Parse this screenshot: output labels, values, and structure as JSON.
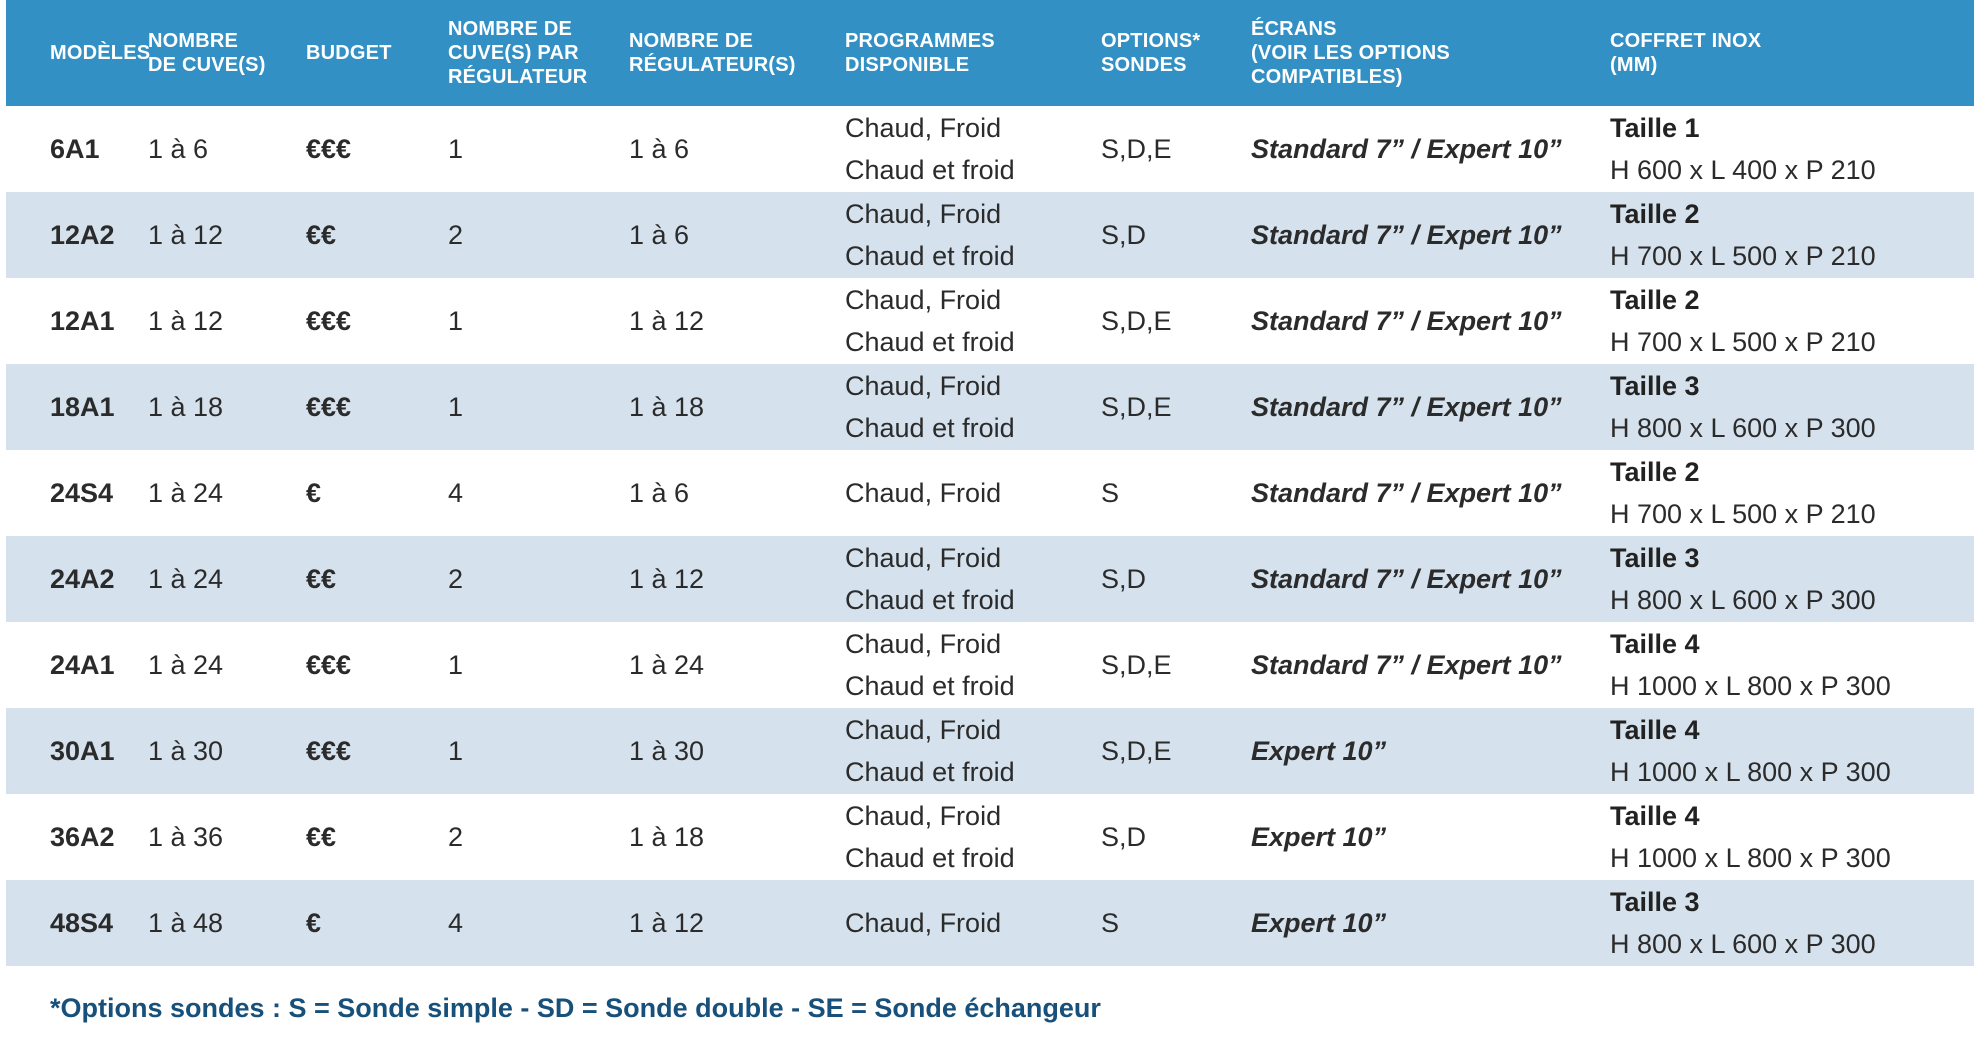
{
  "headers": {
    "model": [
      "MODÈLES"
    ],
    "tanks": [
      "NOMBRE",
      "DE CUVE(S)"
    ],
    "budget": [
      "BUDGET"
    ],
    "tanks_per_regulator": [
      "NOMBRE DE",
      "CUVE(S) PAR",
      "RÉGULATEUR"
    ],
    "regulators": [
      "NOMBRE DE",
      "RÉGULATEUR(S)"
    ],
    "programs": [
      "PROGRAMMES",
      "DISPONIBLE"
    ],
    "probes": [
      "OPTIONS*",
      "SONDES"
    ],
    "screens": [
      "ÉCRANS",
      "(VOIR LES OPTIONS",
      "COMPATIBLES)"
    ],
    "box": [
      "COFFRET INOX",
      "(mm)"
    ]
  },
  "rows": [
    {
      "model": "6A1",
      "tanks": "1 à 6",
      "budget": "€€€",
      "tanks_per_regulator": "1",
      "regulators": "1 à 6",
      "programs": [
        "Chaud, Froid",
        "Chaud et froid"
      ],
      "probes": "S,D,E",
      "screens": "Standard 7” / Expert 10”",
      "box_size": "Taille 1",
      "box_dims": "H 600 x L 400 x P 210"
    },
    {
      "model": "12A2",
      "tanks": "1 à 12",
      "budget": "€€",
      "tanks_per_regulator": "2",
      "regulators": "1 à 6",
      "programs": [
        "Chaud, Froid",
        "Chaud et froid"
      ],
      "probes": "S,D",
      "screens": "Standard 7” / Expert 10”",
      "box_size": "Taille 2",
      "box_dims": "H 700 x L 500 x P 210"
    },
    {
      "model": "12A1",
      "tanks": "1 à 12",
      "budget": "€€€",
      "tanks_per_regulator": "1",
      "regulators": "1 à 12",
      "programs": [
        "Chaud, Froid",
        "Chaud et froid"
      ],
      "probes": "S,D,E",
      "screens": "Standard 7” / Expert 10”",
      "box_size": "Taille 2",
      "box_dims": "H 700 x L 500 x P 210"
    },
    {
      "model": "18A1",
      "tanks": "1 à 18",
      "budget": "€€€",
      "tanks_per_regulator": "1",
      "regulators": "1 à 18",
      "programs": [
        "Chaud, Froid",
        "Chaud et froid"
      ],
      "probes": "S,D,E",
      "screens": "Standard 7” / Expert 10”",
      "box_size": "Taille 3",
      "box_dims": "H 800 x L 600 x P 300"
    },
    {
      "model": "24S4",
      "tanks": "1 à 24",
      "budget": "€",
      "tanks_per_regulator": "4",
      "regulators": "1 à 6",
      "programs": [
        "Chaud, Froid"
      ],
      "probes": "S",
      "screens": "Standard 7” / Expert 10”",
      "box_size": "Taille 2",
      "box_dims": "H 700 x L 500 x P 210"
    },
    {
      "model": "24A2",
      "tanks": "1 à 24",
      "budget": "€€",
      "tanks_per_regulator": "2",
      "regulators": "1 à 12",
      "programs": [
        "Chaud, Froid",
        "Chaud et froid"
      ],
      "probes": "S,D",
      "screens": "Standard 7” / Expert 10”",
      "box_size": "Taille 3",
      "box_dims": "H 800 x L 600 x P 300"
    },
    {
      "model": "24A1",
      "tanks": "1 à 24",
      "budget": "€€€",
      "tanks_per_regulator": "1",
      "regulators": "1 à 24",
      "programs": [
        "Chaud, Froid",
        "Chaud et froid"
      ],
      "probes": "S,D,E",
      "screens": "Standard 7” / Expert 10”",
      "box_size": "Taille 4",
      "box_dims": "H 1000 x L 800 x P 300"
    },
    {
      "model": "30A1",
      "tanks": "1 à 30",
      "budget": "€€€",
      "tanks_per_regulator": "1",
      "regulators": "1 à 30",
      "programs": [
        "Chaud, Froid",
        "Chaud et froid"
      ],
      "probes": "S,D,E",
      "screens": "Expert 10”",
      "box_size": "Taille 4",
      "box_dims": "H 1000 x L 800 x P 300"
    },
    {
      "model": "36A2",
      "tanks": "1 à 36",
      "budget": "€€",
      "tanks_per_regulator": "2",
      "regulators": "1 à 18",
      "programs": [
        "Chaud, Froid",
        "Chaud et froid"
      ],
      "probes": "S,D",
      "screens": "Expert 10”",
      "box_size": "Taille 4",
      "box_dims": "H 1000 x L 800 x P 300"
    },
    {
      "model": "48S4",
      "tanks": "1 à 48",
      "budget": "€",
      "tanks_per_regulator": "4",
      "regulators": "1 à 12",
      "programs": [
        "Chaud, Froid"
      ],
      "probes": "S",
      "screens": "Expert 10”",
      "box_size": "Taille 3",
      "box_dims": "H 800 x L 600 x P 300"
    }
  ],
  "footnote": "*Options sondes : S = Sonde simple - SD = Sonde double - SE = Sonde échangeur",
  "colors": {
    "header_bg": "#3390c5",
    "alt_row_bg": "#d5e2ee",
    "model_text": "#17507a",
    "budget_text": "#3390c5"
  }
}
